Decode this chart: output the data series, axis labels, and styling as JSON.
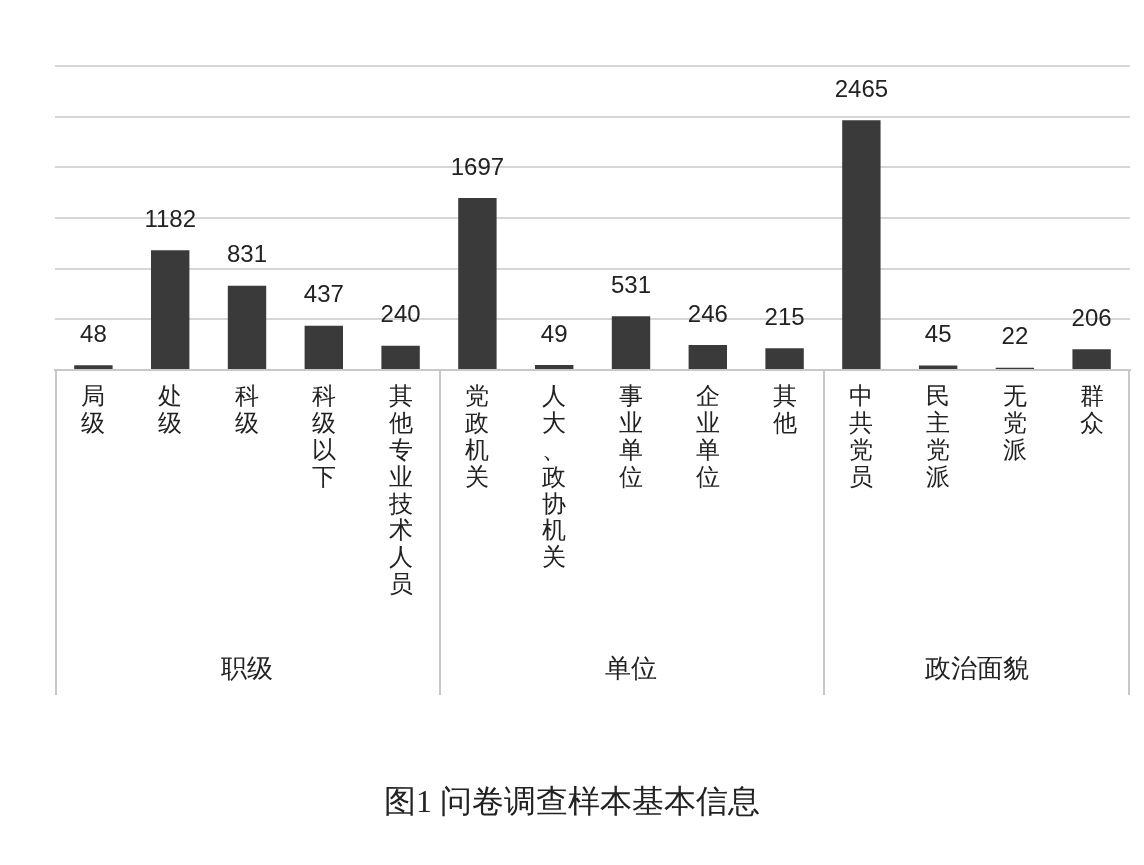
{
  "chart_data": [
    {
      "type": "bar",
      "xlabel": "职级",
      "categories": [
        "局级",
        "处级",
        "科级",
        "科级以下",
        "其他专业技术人员"
      ],
      "values": [
        48,
        1182,
        831,
        437,
        240
      ],
      "color": "#3a3a3a",
      "ylim": [
        0,
        3000
      ],
      "yticks": [
        {
          "value": 0,
          "label": null
        },
        {
          "value": 500,
          "label": null
        },
        {
          "value": 1000,
          "label": null
        },
        {
          "value": 1500,
          "label": null
        },
        {
          "value": 2000,
          "label": null
        },
        {
          "value": 2500,
          "label": null
        }
      ],
      "tick_labels": "x",
      "grid": "y",
      "data_labels": true
    },
    {
      "type": "bar",
      "xlabel": "单位",
      "categories": [
        "党政机关",
        "人大、政协机关",
        "事业单位",
        "企业单位",
        "其他"
      ],
      "values": [
        1697,
        49,
        531,
        246,
        215
      ],
      "color": "#3a3a3a",
      "ylim": [
        0,
        3000
      ],
      "yticks": [
        {
          "value": 0,
          "label": null
        },
        {
          "value": 500,
          "label": null
        },
        {
          "value": 1000,
          "label": null
        },
        {
          "value": 1500,
          "label": null
        },
        {
          "value": 2000,
          "label": null
        },
        {
          "value": 2500,
          "label": null
        }
      ],
      "tick_labels": "x",
      "grid": "y",
      "data_labels": true
    },
    {
      "type": "bar",
      "xlabel": "政治面貌",
      "categories": [
        "中共党员",
        "民主党派",
        "无党派",
        "群众"
      ],
      "values": [
        2465,
        45,
        22,
        206
      ],
      "color": "#3a3a3a",
      "ylim": [
        0,
        3000
      ],
      "yticks": [
        {
          "value": 0,
          "label": null
        },
        {
          "value": 500,
          "label": null
        },
        {
          "value": 1000,
          "label": null
        },
        {
          "value": 1500,
          "label": null
        },
        {
          "value": 2000,
          "label": null
        },
        {
          "value": 2500,
          "label": null
        }
      ],
      "tick_labels": "x",
      "grid": "y",
      "data_labels": true
    },
    {
      "type": "other",
      "title": "图1  问卷调查样本基本信息"
    }
  ]
}
